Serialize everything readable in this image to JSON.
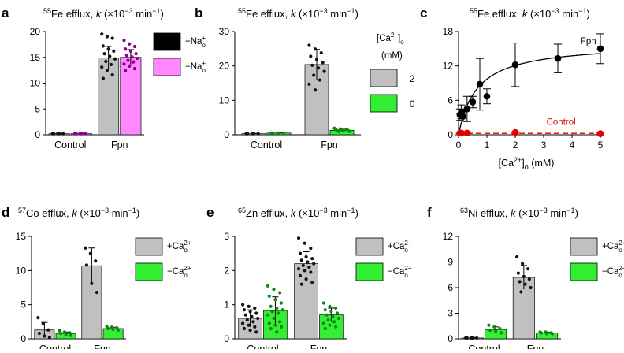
{
  "chart_data": [
    {
      "id": "a",
      "panel_label": "a",
      "type": "bar",
      "title_iso": "55",
      "title_text": "Fe efflux, k (×10−3 min−1)",
      "categories": [
        "Control",
        "Fpn"
      ],
      "ylim": [
        0,
        20
      ],
      "yticks": [
        "0",
        "5",
        "10",
        "15",
        "20"
      ],
      "series": [
        {
          "name": "+Na",
          "name_sub": "o",
          "name_sup": "+",
          "fill": "#c0c0c0",
          "point_color": "#111111",
          "legend_swatch": "#000000",
          "values": [
            0.2,
            14.9
          ],
          "errors": [
            0.1,
            2.2
          ],
          "points": [
            [
              0.2,
              0.2,
              0.2,
              0.2,
              0.2
            ],
            [
              19.5,
              19.0,
              18.7,
              17.2,
              16.6,
              16.2,
              15.7,
              15.2,
              14.7,
              14.2,
              13.6,
              13.1,
              12.5,
              11.6,
              10.9
            ]
          ]
        },
        {
          "name": "−Na",
          "name_sub": "o",
          "name_sup": "+",
          "fill": "#ff88ff",
          "point_color": "#880088",
          "legend_swatch": "#ff88ff",
          "values": [
            0.2,
            15.0
          ],
          "errors": [
            0.1,
            1.5
          ],
          "points": [
            [
              0.2,
              0.2,
              0.2,
              0.2,
              0.2
            ],
            [
              18.3,
              17.6,
              17.1,
              16.6,
              16.2,
              15.7,
              15.4,
              15.1,
              14.8,
              14.4,
              14.1,
              13.7,
              13.3,
              12.8,
              12.4
            ]
          ]
        }
      ]
    },
    {
      "id": "b",
      "panel_label": "b",
      "type": "bar",
      "title_iso": "55",
      "title_text": "Fe efflux, k (×10−3 min−1)",
      "categories": [
        "Control",
        "Fpn"
      ],
      "ylim": [
        0,
        30
      ],
      "yticks": [
        "0",
        "10",
        "20",
        "30"
      ],
      "legend_title": "[Ca2+]o",
      "legend_unit": "(mM)",
      "series": [
        {
          "name": "2",
          "fill": "#c0c0c0",
          "point_color": "#111111",
          "legend_swatch": "#c0c0c0",
          "values": [
            0.3,
            20.4
          ],
          "errors": [
            0.1,
            4.4
          ],
          "points": [
            [
              0.3,
              0.3,
              0.3,
              0.3,
              0.3
            ],
            [
              26.0,
              24.9,
              23.8,
              22.8,
              21.9,
              21.0,
              20.2,
              19.4,
              18.4,
              17.3,
              15.9,
              14.7,
              13.0
            ]
          ]
        },
        {
          "name": "0",
          "fill": "#33ee33",
          "point_color": "#118811",
          "legend_swatch": "#33ee33",
          "values": [
            0.5,
            1.3
          ],
          "errors": [
            0.1,
            0.3
          ],
          "points": [
            [
              0.5,
              0.5,
              0.5,
              0.5,
              0.5
            ],
            [
              1.9,
              1.7,
              1.6,
              1.5,
              1.4,
              1.3,
              1.2,
              1.1,
              1.0,
              0.9
            ]
          ]
        }
      ]
    },
    {
      "id": "c",
      "panel_label": "c",
      "type": "scatter",
      "title_iso": "55",
      "title_text": "Fe efflux, k (×10−3 min−1)",
      "xlabel_pre": "[Ca",
      "xlabel_sup": "2+",
      "xlabel_post": "]",
      "xlabel_sub": "o",
      "xlabel_unit": " (mM)",
      "xlim": [
        0,
        5
      ],
      "ylim": [
        0,
        18
      ],
      "xticks": [
        "0",
        "1",
        "2",
        "3",
        "4",
        "5"
      ],
      "yticks": [
        "0",
        "6",
        "12",
        "18"
      ],
      "series": [
        {
          "name": "Fpn",
          "color": "#000000",
          "x": [
            0.05,
            0.1,
            0.15,
            0.3,
            0.5,
            0.75,
            1.0,
            2.0,
            3.5,
            5.0
          ],
          "y": [
            3.5,
            4.0,
            3.2,
            4.5,
            5.7,
            8.8,
            6.7,
            12.2,
            13.3,
            15.0
          ],
          "err": [
            1.0,
            1.2,
            0.8,
            2.2,
            1.0,
            4.5,
            1.3,
            3.8,
            2.5,
            2.6
          ],
          "fit": {
            "vmax": 16.0,
            "km": 0.65
          }
        },
        {
          "name": "Control",
          "color": "#e00000",
          "x": [
            0.05,
            0.1,
            0.3,
            2.0,
            5.0
          ],
          "y": [
            0.3,
            0.3,
            0.3,
            0.4,
            0.2
          ],
          "err": [
            0.1,
            0.1,
            0.1,
            0.1,
            0.1
          ],
          "fit_line": 0.25
        }
      ]
    },
    {
      "id": "d",
      "panel_label": "d",
      "type": "bar",
      "title_iso": "57",
      "title_text": "Co efflux, k (×10−3 min−1)",
      "categories": [
        "Control",
        "Fpn"
      ],
      "ylim": [
        0,
        15
      ],
      "yticks": [
        "0",
        "5",
        "10",
        "15"
      ],
      "series": [
        {
          "name": "+Ca",
          "name_sub": "o",
          "name_sup": "2+",
          "fill": "#c0c0c0",
          "point_color": "#111111",
          "legend_swatch": "#c0c0c0",
          "values": [
            1.3,
            10.7
          ],
          "errors": [
            1.1,
            2.6
          ],
          "points": [
            [
              3.1,
              2.2,
              1.3,
              0.8,
              0.4,
              0.2
            ],
            [
              13.3,
              12.5,
              11.4,
              10.8,
              8.1,
              6.8
            ]
          ]
        },
        {
          "name": "−Ca",
          "name_sub": "o",
          "name_sup": "2+",
          "fill": "#33ee33",
          "point_color": "#118811",
          "legend_swatch": "#33ee33",
          "values": [
            0.8,
            1.5
          ],
          "errors": [
            0.2,
            0.2
          ],
          "points": [
            [
              1.2,
              1.0,
              0.9,
              0.8,
              0.6,
              0.5
            ],
            [
              1.8,
              1.7,
              1.6,
              1.5,
              1.4,
              1.3
            ]
          ]
        }
      ]
    },
    {
      "id": "e",
      "panel_label": "e",
      "type": "bar",
      "title_iso": "65",
      "title_text": "Zn efflux, k (×10−3 min−1)",
      "categories": [
        "Control",
        "Fpn"
      ],
      "ylim": [
        0,
        3
      ],
      "yticks": [
        "0",
        "1",
        "2",
        "3"
      ],
      "series": [
        {
          "name": "+Ca",
          "name_sub": "o",
          "name_sup": "2+",
          "fill": "#c0c0c0",
          "point_color": "#111111",
          "legend_swatch": "#c0c0c0",
          "values": [
            0.6,
            2.2
          ],
          "errors": [
            0.25,
            0.35
          ],
          "points": [
            [
              1.0,
              0.95,
              0.9,
              0.85,
              0.8,
              0.75,
              0.7,
              0.65,
              0.6,
              0.55,
              0.5,
              0.45,
              0.4,
              0.35,
              0.3,
              0.25,
              0.2
            ],
            [
              2.95,
              2.8,
              2.65,
              2.5,
              2.4,
              2.35,
              2.3,
              2.25,
              2.2,
              2.15,
              2.1,
              2.05,
              2.0,
              1.95,
              1.85,
              1.75,
              1.65,
              1.6
            ]
          ]
        },
        {
          "name": "−Ca",
          "name_sub": "o",
          "name_sup": "2+",
          "fill": "#33ee33",
          "point_color": "#118811",
          "legend_swatch": "#33ee33",
          "values": [
            0.83,
            0.7
          ],
          "errors": [
            0.4,
            0.2
          ],
          "points": [
            [
              1.55,
              1.45,
              1.35,
              1.25,
              1.15,
              1.05,
              0.95,
              0.9,
              0.85,
              0.8,
              0.75,
              0.7,
              0.6,
              0.5,
              0.45,
              0.4,
              0.35,
              0.3,
              0.2
            ],
            [
              1.05,
              0.95,
              0.9,
              0.85,
              0.8,
              0.75,
              0.7,
              0.65,
              0.6,
              0.55,
              0.5,
              0.45,
              0.4,
              0.35,
              0.3
            ]
          ]
        }
      ]
    },
    {
      "id": "f",
      "panel_label": "f",
      "type": "bar",
      "title_iso": "63",
      "title_text": "Ni efflux, k (×10−3 min−1)",
      "categories": [
        "Control",
        "Fpn"
      ],
      "ylim": [
        0,
        12
      ],
      "yticks": [
        "0",
        "3",
        "6",
        "9",
        "12"
      ],
      "series": [
        {
          "name": "+Ca",
          "name_sub": "o",
          "name_sup": "2+",
          "fill": "#c0c0c0",
          "point_color": "#111111",
          "legend_swatch": "#c0c0c0",
          "values": [
            0.1,
            7.2
          ],
          "errors": [
            0.05,
            1.4
          ],
          "points": [
            [
              0.1,
              0.1,
              0.1,
              0.1,
              0.1
            ],
            [
              9.6,
              8.8,
              8.2,
              7.7,
              7.3,
              7.0,
              6.7,
              6.4,
              6.0,
              5.5
            ]
          ]
        },
        {
          "name": "−Ca",
          "name_sub": "o",
          "name_sup": "2+",
          "fill": "#33ee33",
          "point_color": "#118811",
          "legend_swatch": "#33ee33",
          "values": [
            1.1,
            0.7
          ],
          "errors": [
            0.3,
            0.1
          ],
          "points": [
            [
              1.6,
              1.4,
              1.2,
              1.0,
              0.9,
              0.7
            ],
            [
              0.8,
              0.8,
              0.7,
              0.7,
              0.6,
              0.6
            ]
          ]
        }
      ]
    }
  ]
}
